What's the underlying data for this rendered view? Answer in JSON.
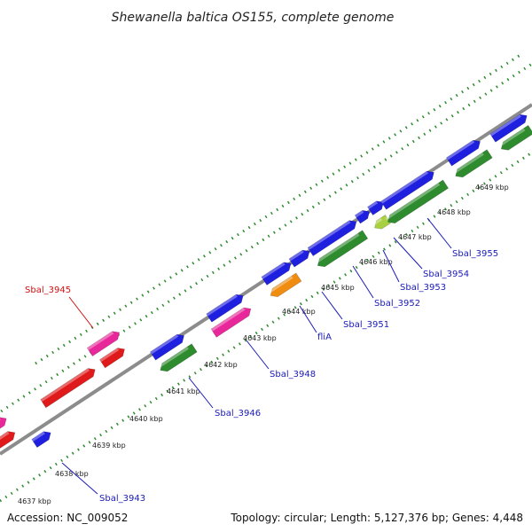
{
  "title": "Shewanella baltica OS155, complete genome",
  "footer": {
    "accession": "Accession: NC_009052",
    "summary": "Topology: circular; Length: 5,127,376 bp; Genes: 4,448"
  },
  "colors": {
    "backbone": "#8c8c8c",
    "tick": "#2e8b2e",
    "cds_blue": "#1f1fe0",
    "cds_green": "#2e8b2e",
    "cds_red": "#e01a1a",
    "cds_pink": "#e8289a",
    "cds_orange": "#f08c10",
    "cds_yellow_green": "#a8d040",
    "label_blue": "#1a1ab8",
    "label_red": "#d01010"
  },
  "kbp_ticks": [
    "4637 kbp",
    "4638 kbp",
    "4639 kbp",
    "4640 kbp",
    "4641 kbp",
    "4642 kbp",
    "4643 kbp",
    "4644 kbp",
    "4645 kbp",
    "4646 kbp",
    "4647 kbp",
    "4648 kbp",
    "4649 kbp"
  ],
  "gene_labels": [
    {
      "text": "Sbal_3943",
      "color": "blue"
    },
    {
      "text": "Sbal_3945",
      "color": "red"
    },
    {
      "text": "Sbal_3946",
      "color": "blue"
    },
    {
      "text": "Sbal_3948",
      "color": "blue"
    },
    {
      "text": "fliA",
      "color": "blue"
    },
    {
      "text": "Sbal_3951",
      "color": "blue"
    },
    {
      "text": "Sbal_3952",
      "color": "blue"
    },
    {
      "text": "Sbal_3953",
      "color": "blue"
    },
    {
      "text": "Sbal_3954",
      "color": "blue"
    },
    {
      "text": "Sbal_3955",
      "color": "blue"
    }
  ]
}
